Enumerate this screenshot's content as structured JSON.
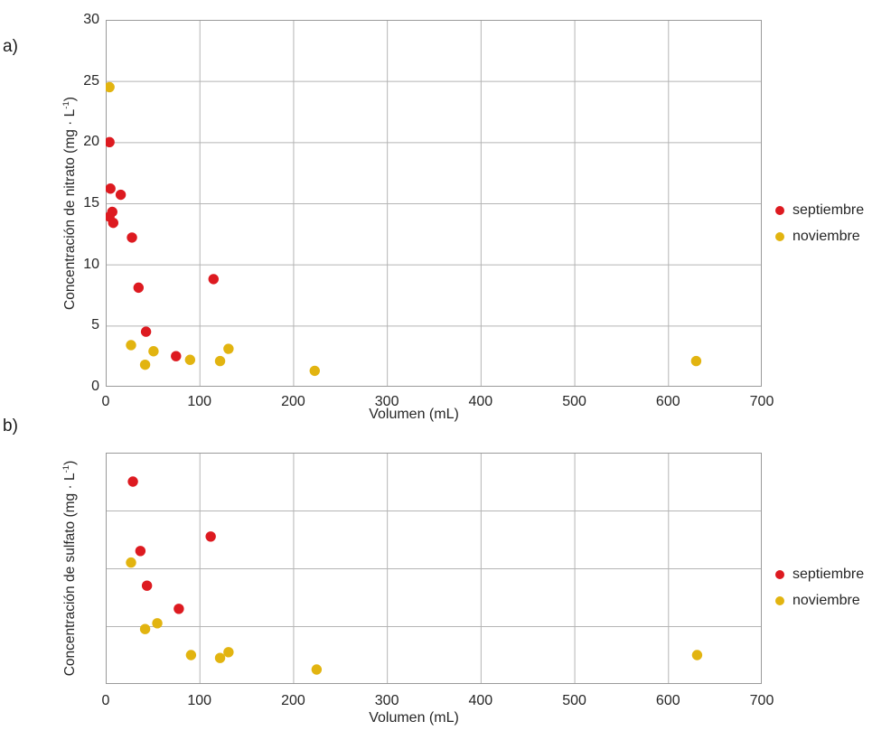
{
  "figure": {
    "xlabel": "Volumen (mL)",
    "colors": {
      "septiembre": "#dd1a20",
      "noviembre": "#e2b410",
      "gridline": "#b5b5b5",
      "plot_border": "#9a9a9a",
      "text": "#262626"
    }
  },
  "chart_data": [
    {
      "type": "scatter",
      "panel_label": "a)",
      "xlabel": "Volumen (mL)",
      "ylabel_prefix": "Concentración de nitrato (mg · L",
      "ylabel_sup": "-1",
      "ylabel_suffix": ")",
      "xlim": [
        0,
        700
      ],
      "ylim": [
        0,
        30
      ],
      "x_ticks": [
        0,
        100,
        200,
        300,
        400,
        500,
        600,
        700
      ],
      "y_ticks": [
        0,
        5,
        10,
        15,
        20,
        25,
        30
      ],
      "grid": true,
      "legend_position": "right",
      "series": [
        {
          "name": "septiembre",
          "color": "#dd1a20",
          "points": [
            [
              4,
              20.0
            ],
            [
              5,
              16.2
            ],
            [
              16,
              15.7
            ],
            [
              7,
              14.3
            ],
            [
              4,
              13.9
            ],
            [
              8,
              13.4
            ],
            [
              28,
              12.2
            ],
            [
              35,
              8.1
            ],
            [
              115,
              8.8
            ],
            [
              43,
              4.5
            ],
            [
              75,
              2.5
            ]
          ]
        },
        {
          "name": "noviembre",
          "color": "#e2b410",
          "points": [
            [
              4,
              24.5
            ],
            [
              27,
              3.4
            ],
            [
              51,
              2.9
            ],
            [
              42,
              1.8
            ],
            [
              90,
              2.2
            ],
            [
              122,
              2.1
            ],
            [
              131,
              3.1
            ],
            [
              223,
              1.3
            ],
            [
              630,
              2.1
            ]
          ]
        }
      ]
    },
    {
      "type": "scatter",
      "panel_label": "b)",
      "xlabel": "Volumen (mL)",
      "ylabel_prefix": "Concentración de sulfato (mg · L",
      "ylabel_sup": "-1",
      "ylabel_suffix": ")",
      "xlim": [
        0,
        700
      ],
      "ylim": [
        0,
        4
      ],
      "x_ticks": [
        0,
        100,
        200,
        300,
        400,
        500,
        600,
        700
      ],
      "y_ticks": [],
      "y_tick_labels_visible": false,
      "y_axis_note": "y axis unlabeled in source; values are in gridline units 0-4",
      "grid": true,
      "legend_position": "right",
      "series": [
        {
          "name": "septiembre",
          "color": "#dd1a20",
          "points": [
            [
              29,
              3.5
            ],
            [
              37,
              2.3
            ],
            [
              44,
              1.7
            ],
            [
              78,
              1.3
            ],
            [
              112,
              2.55
            ]
          ]
        },
        {
          "name": "noviembre",
          "color": "#e2b410",
          "points": [
            [
              27,
              2.1
            ],
            [
              42,
              0.95
            ],
            [
              55,
              1.05
            ],
            [
              91,
              0.5
            ],
            [
              122,
              0.45
            ],
            [
              131,
              0.55
            ],
            [
              225,
              0.25
            ],
            [
              631,
              0.5
            ]
          ]
        }
      ]
    }
  ]
}
